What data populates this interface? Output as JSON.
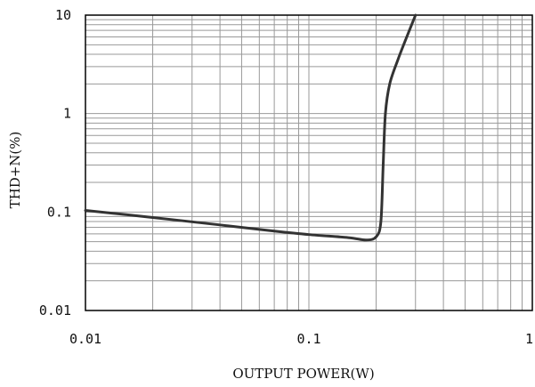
{
  "chart_data": {
    "type": "line",
    "title": "",
    "xlabel": "OUTPUT POWER(W)",
    "ylabel": "THD+N(%)",
    "xscale": "log",
    "yscale": "log",
    "xlim": [
      0.01,
      1
    ],
    "ylim": [
      0.01,
      10
    ],
    "grid": true,
    "x_tick_labels": [
      "0.01",
      "0.1",
      "1"
    ],
    "y_tick_labels": [
      "0.01",
      "0.1",
      "1",
      "10"
    ],
    "line_color": "#333333",
    "grid_color": "#999999",
    "series": [
      {
        "x": [
          0.01,
          0.02,
          0.04,
          0.07,
          0.1,
          0.15,
          0.18,
          0.2,
          0.21,
          0.215,
          0.22,
          0.23,
          0.25,
          0.27,
          0.3
        ],
        "y": [
          0.104,
          0.088,
          0.074,
          0.064,
          0.059,
          0.055,
          0.052,
          0.056,
          0.08,
          0.3,
          1.0,
          2.0,
          3.5,
          5.5,
          10
        ]
      }
    ]
  }
}
